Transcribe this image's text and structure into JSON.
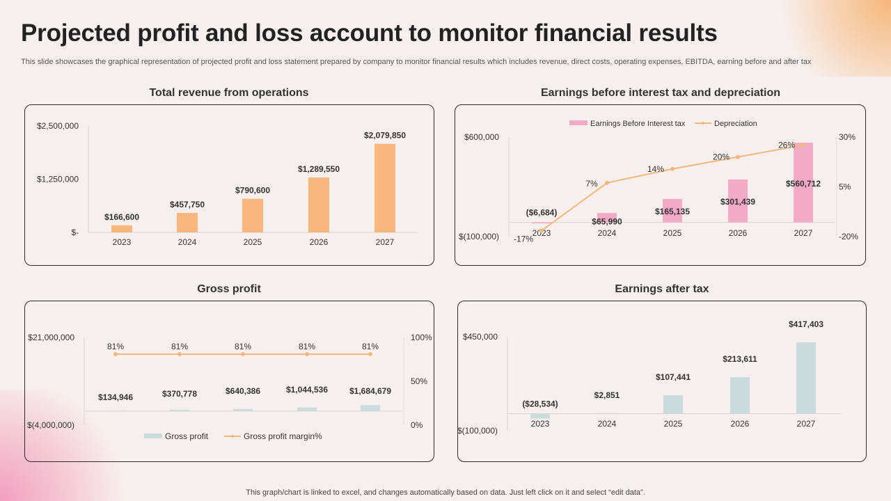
{
  "title": "Projected profit and loss account to monitor financial results",
  "subtitle": "This slide showcases the graphical representation of projected profit and loss statement prepared by company to monitor financial results which includes revenue, direct costs, operating expenses, EBITDA,  earning before and after tax",
  "footer": "This graph/chart is linked to excel,  and changes automatically based on data. Just left click on it and select “edit data”.",
  "colors": {
    "revenue_bar": "#f7b77e",
    "ebit_bar": "#f3aac4",
    "line": "#f0b77f",
    "gross_bar": "#c9dbdd",
    "eat_bar": "#c9dbdd"
  },
  "chart_data": [
    {
      "type": "bar",
      "title": "Total revenue from operations",
      "categories": [
        "2023",
        "2024",
        "2025",
        "2026",
        "2027"
      ],
      "values": [
        166600,
        457750,
        790600,
        1289550,
        2079850
      ],
      "data_labels": [
        "$166,600",
        "$457,750",
        "$790,600",
        "$1,289,550",
        "$2,079,850"
      ],
      "y_ticks": [
        "$-",
        "$1,250,000",
        "$2,500,000"
      ],
      "ylim": [
        0,
        2500000
      ],
      "grid": false
    },
    {
      "type": "bar+line",
      "title": "Earnings before interest tax and depreciation",
      "categories": [
        "2023",
        "2024",
        "2025",
        "2026",
        "2027"
      ],
      "series": [
        {
          "name": "Earnings Before Interest tax",
          "type": "bar",
          "axis": "left",
          "values": [
            -6684,
            65990,
            165135,
            301439,
            560712
          ],
          "data_labels": [
            "($6,684)",
            "$65,990",
            "$165,135",
            "$301,439",
            "$560,712"
          ]
        },
        {
          "name": "Depreciation",
          "type": "line",
          "axis": "right",
          "values": [
            -17,
            7,
            14,
            20,
            26
          ],
          "data_labels": [
            "-17%",
            "7%",
            "14%",
            "20%",
            "26%"
          ]
        }
      ],
      "y_ticks": [
        "$(100,000)",
        "$600,000"
      ],
      "ylim": [
        -100000,
        600000
      ],
      "y2_ticks": [
        "-20%",
        "5%",
        "30%"
      ],
      "y2lim": [
        -20,
        30
      ],
      "legend": "top",
      "grid": false
    },
    {
      "type": "bar+line",
      "title": "Gross profit",
      "categories": [
        "2023",
        "2024",
        "2025",
        "2026",
        "2027"
      ],
      "series": [
        {
          "name": "Gross profit",
          "type": "bar",
          "axis": "left",
          "values": [
            134946,
            370778,
            640386,
            1044536,
            1684679
          ],
          "data_labels": [
            "$134,946",
            "$370,778",
            "$640,386",
            "$1,044,536",
            "$1,684,679"
          ]
        },
        {
          "name": "Gross profit margin%",
          "type": "line",
          "axis": "right",
          "values": [
            81,
            81,
            81,
            81,
            81
          ],
          "data_labels": [
            "81%",
            "81%",
            "81%",
            "81%",
            "81%"
          ]
        }
      ],
      "y_ticks": [
        "$(4,000,000)",
        "$21,000,000"
      ],
      "ylim": [
        -4000000,
        21000000
      ],
      "y2_ticks": [
        "0%",
        "50%",
        "100%"
      ],
      "y2lim": [
        0,
        100
      ],
      "legend": "bottom",
      "grid": false
    },
    {
      "type": "bar",
      "title": "Earnings after tax",
      "categories": [
        "2023",
        "2024",
        "2025",
        "2026",
        "2027"
      ],
      "values": [
        -28534,
        2851,
        107441,
        213611,
        417403
      ],
      "data_labels": [
        "($28,534)",
        "$2,851",
        "$107,441",
        "$213,611",
        "$417,403"
      ],
      "y_ticks": [
        "$(100,000)",
        "$450,000"
      ],
      "ylim": [
        -100000,
        450000
      ],
      "grid": false
    }
  ]
}
